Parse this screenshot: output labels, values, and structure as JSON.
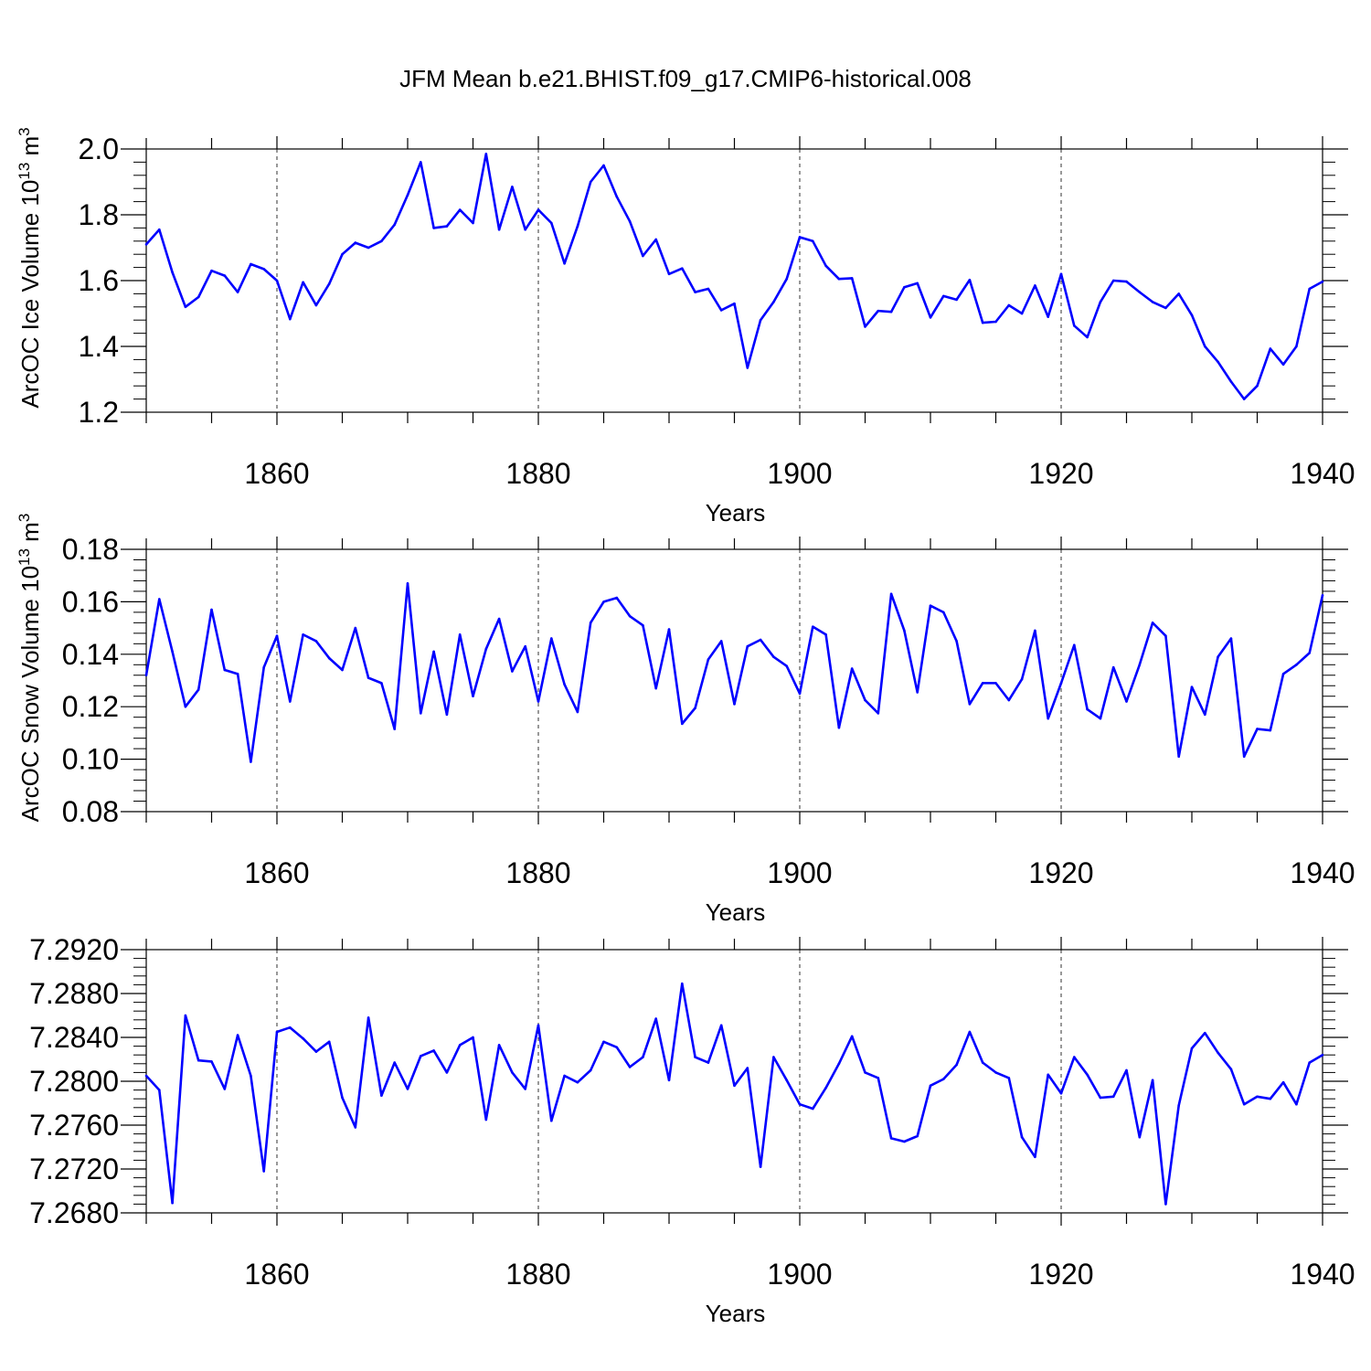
{
  "title": "JFM Mean b.e21.BHIST.f09_g17.CMIP6-historical.008",
  "line_color": "#0000ff",
  "chart_data": [
    {
      "type": "line",
      "xlabel": "Years",
      "ylabel": "ArcOC Ice Volume 10",
      "ylabel_exp": "13",
      "ylabel_unit": "m",
      "ylabel_unit_exp": "3",
      "xlim": [
        1850,
        1940
      ],
      "ylim": [
        1.2,
        2.0
      ],
      "xticks": [
        1860,
        1880,
        1900,
        1920,
        1940
      ],
      "xtick_labels": [
        "1860",
        "1880",
        "1900",
        "1920",
        "1940"
      ],
      "yticks": [
        1.2,
        1.4,
        1.6,
        1.8,
        2.0
      ],
      "ytick_labels": [
        "1.2",
        "1.4",
        "1.6",
        "1.8",
        "2.0"
      ],
      "x_start": 1850,
      "values": [
        1.71,
        1.755,
        1.625,
        1.52,
        1.55,
        1.63,
        1.615,
        1.565,
        1.65,
        1.635,
        1.6,
        1.483,
        1.595,
        1.525,
        1.59,
        1.68,
        1.715,
        1.7,
        1.72,
        1.77,
        1.86,
        1.96,
        1.76,
        1.765,
        1.815,
        1.775,
        1.985,
        1.755,
        1.885,
        1.755,
        1.815,
        1.775,
        1.652,
        1.765,
        1.9,
        1.95,
        1.855,
        1.78,
        1.675,
        1.725,
        1.62,
        1.637,
        1.565,
        1.575,
        1.51,
        1.53,
        1.335,
        1.48,
        1.535,
        1.605,
        1.732,
        1.72,
        1.645,
        1.605,
        1.607,
        1.46,
        1.508,
        1.505,
        1.58,
        1.592,
        1.488,
        1.553,
        1.542,
        1.602,
        1.472,
        1.475,
        1.525,
        1.5,
        1.585,
        1.49,
        1.62,
        1.463,
        1.428,
        1.535,
        1.6,
        1.597,
        1.565,
        1.535,
        1.517,
        1.56,
        1.495,
        1.4,
        1.353,
        1.293,
        1.24,
        1.28,
        1.393,
        1.345,
        1.4,
        1.575,
        1.597
      ]
    },
    {
      "type": "line",
      "xlabel": "Years",
      "ylabel": "ArcOC Snow Volume 10",
      "ylabel_exp": "13",
      "ylabel_unit": "m",
      "ylabel_unit_exp": "3",
      "xlim": [
        1850,
        1940
      ],
      "ylim": [
        0.08,
        0.18
      ],
      "xticks": [
        1860,
        1880,
        1900,
        1920,
        1940
      ],
      "xtick_labels": [
        "1860",
        "1880",
        "1900",
        "1920",
        "1940"
      ],
      "yticks": [
        0.08,
        0.1,
        0.12,
        0.14,
        0.16,
        0.18
      ],
      "ytick_labels": [
        "0.08",
        "0.10",
        "0.12",
        "0.14",
        "0.16",
        "0.18"
      ],
      "x_start": 1850,
      "values": [
        0.132,
        0.161,
        0.141,
        0.12,
        0.1265,
        0.157,
        0.134,
        0.1325,
        0.099,
        0.135,
        0.147,
        0.122,
        0.1475,
        0.145,
        0.1385,
        0.134,
        0.15,
        0.131,
        0.129,
        0.1115,
        0.167,
        0.1175,
        0.141,
        0.117,
        0.1475,
        0.124,
        0.142,
        0.1535,
        0.1335,
        0.143,
        0.122,
        0.146,
        0.1285,
        0.118,
        0.152,
        0.16,
        0.1615,
        0.1545,
        0.151,
        0.127,
        0.1495,
        0.1135,
        0.1195,
        0.138,
        0.145,
        0.121,
        0.143,
        0.1455,
        0.139,
        0.1355,
        0.125,
        0.1505,
        0.1475,
        0.112,
        0.1345,
        0.1225,
        0.1175,
        0.163,
        0.149,
        0.1255,
        0.1585,
        0.156,
        0.145,
        0.121,
        0.129,
        0.129,
        0.1225,
        0.1305,
        0.149,
        0.1155,
        0.129,
        0.1435,
        0.119,
        0.1155,
        0.135,
        0.122,
        0.136,
        0.152,
        0.147,
        0.101,
        0.1275,
        0.117,
        0.139,
        0.146,
        0.101,
        0.1115,
        0.111,
        0.1325,
        0.136,
        0.1405,
        0.1625
      ]
    },
    {
      "type": "line",
      "xlabel": "Years",
      "ylabel": "",
      "xlim": [
        1850,
        1940
      ],
      "ylim": [
        7.268,
        7.292
      ],
      "xticks": [
        1860,
        1880,
        1900,
        1920,
        1940
      ],
      "xtick_labels": [
        "1860",
        "1880",
        "1900",
        "1920",
        "1940"
      ],
      "yticks": [
        7.268,
        7.272,
        7.276,
        7.28,
        7.284,
        7.288,
        7.292
      ],
      "ytick_labels": [
        "7.2680",
        "7.2720",
        "7.2760",
        "7.2800",
        "7.2840",
        "7.2880",
        "7.2920"
      ],
      "x_start": 1850,
      "values": [
        7.2805,
        7.2792,
        7.2689,
        7.286,
        7.2819,
        7.2818,
        7.2793,
        7.2842,
        7.2805,
        7.2718,
        7.2845,
        7.2849,
        7.2839,
        7.2827,
        7.2836,
        7.2785,
        7.2758,
        7.2858,
        7.2787,
        7.2817,
        7.2793,
        7.2823,
        7.2828,
        7.2808,
        7.2833,
        7.284,
        7.2765,
        7.2833,
        7.2808,
        7.2793,
        7.2851,
        7.2764,
        7.2805,
        7.2799,
        7.281,
        7.2836,
        7.2831,
        7.2813,
        7.2822,
        7.2857,
        7.2801,
        7.2889,
        7.2822,
        7.2817,
        7.2851,
        7.2796,
        7.2812,
        7.2722,
        7.2822,
        7.2801,
        7.2779,
        7.2775,
        7.2794,
        7.2816,
        7.2841,
        7.2808,
        7.2803,
        7.2748,
        7.2745,
        7.275,
        7.2796,
        7.2802,
        7.2815,
        7.2845,
        7.2817,
        7.2808,
        7.2803,
        7.2749,
        7.2731,
        7.2806,
        7.2789,
        7.2822,
        7.2806,
        7.2785,
        7.2786,
        7.281,
        7.2749,
        7.2801,
        7.2688,
        7.2778,
        7.283,
        7.2844,
        7.2826,
        7.2811,
        7.2779,
        7.2786,
        7.2784,
        7.2799,
        7.2779,
        7.2817,
        7.2824
      ]
    }
  ]
}
